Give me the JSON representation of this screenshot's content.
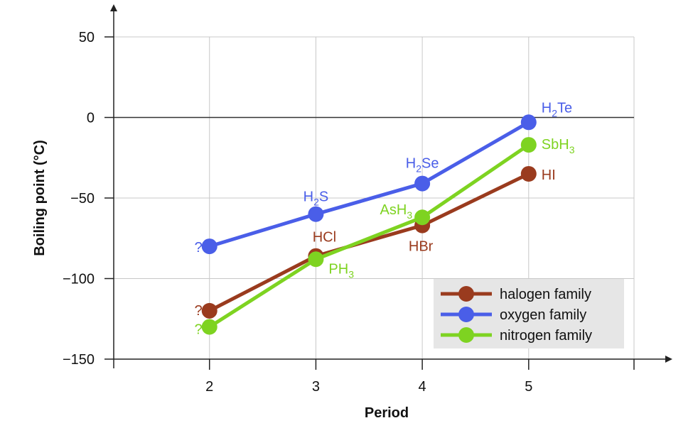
{
  "chart_data": {
    "type": "line",
    "xlabel": "Period",
    "ylabel": "Boiling point (°C)",
    "xlim": [
      1.1,
      5.99
    ],
    "ylim": [
      -150,
      50
    ],
    "x_ticks": [
      2,
      3,
      4,
      5
    ],
    "y_ticks": [
      50,
      0,
      -50,
      -100,
      -150
    ],
    "y_tick_labels": [
      "50",
      "0",
      "−50",
      "−100",
      "−150"
    ],
    "grid": true,
    "legend_placement": "bottom-right",
    "series": [
      {
        "name": "halogen family",
        "color": "#9a3b1e",
        "x": [
          2,
          3,
          4,
          5
        ],
        "y": [
          -120,
          -86,
          -67,
          -35
        ],
        "point_labels": [
          {
            "base": "?",
            "sub": "",
            "tail": ""
          },
          {
            "base": "HCl",
            "sub": "",
            "tail": ""
          },
          {
            "base": "HBr",
            "sub": "",
            "tail": ""
          },
          {
            "base": "HI",
            "sub": "",
            "tail": ""
          }
        ]
      },
      {
        "name": "oxygen family",
        "color": "#4a5ee8",
        "x": [
          2,
          3,
          4,
          5
        ],
        "y": [
          -80,
          -60,
          -41,
          -3
        ],
        "point_labels": [
          {
            "base": "?",
            "sub": "",
            "tail": ""
          },
          {
            "base": "H",
            "sub": "2",
            "tail": "S"
          },
          {
            "base": "H",
            "sub": "2",
            "tail": "Se"
          },
          {
            "base": "H",
            "sub": "2",
            "tail": "Te"
          }
        ]
      },
      {
        "name": "nitrogen family",
        "color": "#7ed321",
        "x": [
          2,
          3,
          4,
          5
        ],
        "y": [
          -130,
          -88,
          -62,
          -17
        ],
        "point_labels": [
          {
            "base": "?",
            "sub": "",
            "tail": ""
          },
          {
            "base": "PH",
            "sub": "3",
            "tail": ""
          },
          {
            "base": "AsH",
            "sub": "3",
            "tail": ""
          },
          {
            "base": "SbH",
            "sub": "3",
            "tail": ""
          }
        ]
      }
    ]
  }
}
